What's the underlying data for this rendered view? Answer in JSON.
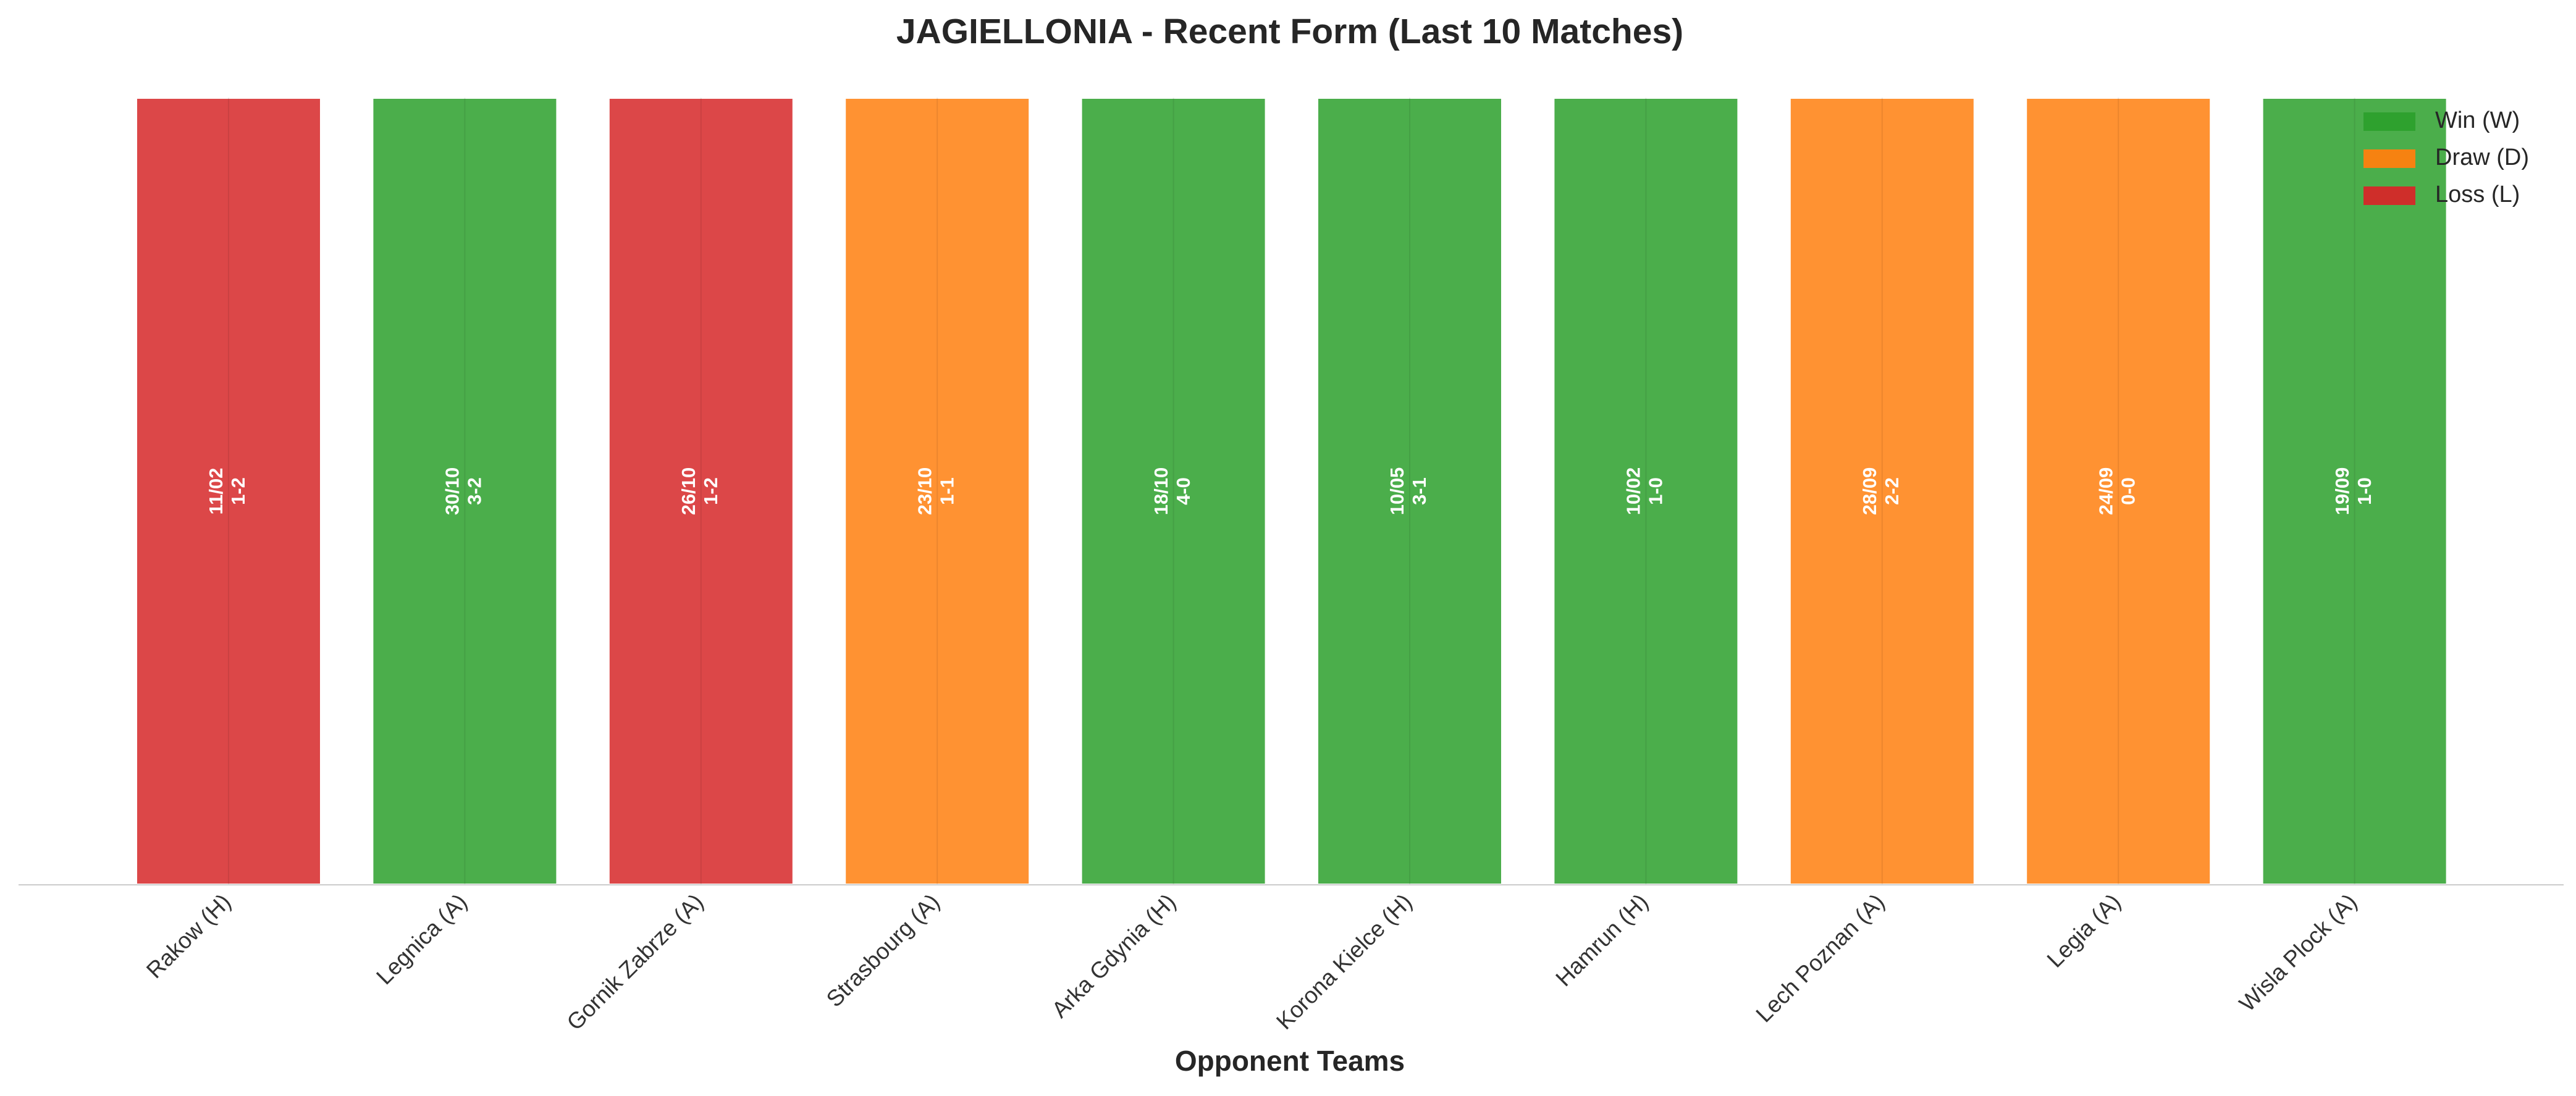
{
  "chart_data": {
    "type": "bar",
    "title": "JAGIELLONIA - Recent Form (Last 10 Matches)",
    "xlabel": "Opponent Teams",
    "ylabel": "",
    "grid": false,
    "legend_position": "top-right",
    "categories": [
      "Rakow (H)",
      "Legnica (A)",
      "Gornik Zabrze (A)",
      "Strasbourg (A)",
      "Arka Gdynia (H)",
      "Korona Kielce (H)",
      "Hamrun (H)",
      "Lech Poznan (A)",
      "Legia (A)",
      "Wisla Plock (A)"
    ],
    "values": [
      1,
      1,
      1,
      1,
      1,
      1,
      1,
      1,
      1,
      1
    ],
    "results": [
      "L",
      "W",
      "L",
      "D",
      "W",
      "W",
      "W",
      "D",
      "D",
      "W"
    ],
    "dates": [
      "11/02",
      "30/10",
      "26/10",
      "23/10",
      "18/10",
      "10/05",
      "10/02",
      "28/09",
      "24/09",
      "19/09"
    ],
    "scores": [
      "1-2",
      "3-2",
      "1-2",
      "1-1",
      "4-0",
      "3-1",
      "1-0",
      "2-2",
      "0-0",
      "1-0"
    ],
    "legend": [
      {
        "key": "W",
        "label": "Win (W)",
        "color": "#2ca02c"
      },
      {
        "key": "D",
        "label": "Draw (D)",
        "color": "#ff7f0e"
      },
      {
        "key": "L",
        "label": "Loss (L)",
        "color": "#d62728"
      }
    ]
  }
}
